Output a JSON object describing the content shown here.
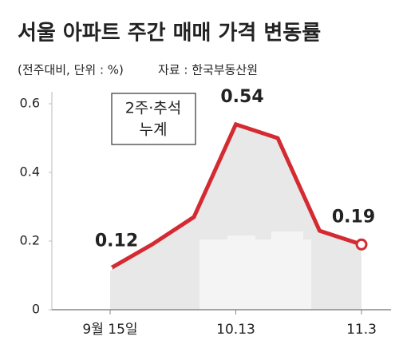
{
  "chart_data": {
    "type": "line",
    "title": "서울 아파트 주간 매매 가격 변동률",
    "subtitle": "(전주대비, 단위 : %)",
    "source": "자료 : 한국부동산원",
    "annotation": [
      "2주·추석",
      "누계"
    ],
    "categories": [
      "9월 15일",
      null,
      null,
      "10.13",
      null,
      null,
      "11.3"
    ],
    "series": [
      {
        "name": "서울 아파트 매매 가격 변동률",
        "color": "#d42a32",
        "values": [
          0.12,
          0.19,
          0.27,
          0.54,
          0.5,
          0.23,
          0.19
        ],
        "value_labels": [
          "0.12",
          null,
          null,
          "0.54",
          null,
          null,
          "0.19"
        ]
      }
    ],
    "ylim": [
      0,
      0.6
    ],
    "yticks": [
      0,
      0.2,
      0.4,
      0.6
    ],
    "grid": false,
    "area": true,
    "area_color": "#e8e8e8"
  }
}
